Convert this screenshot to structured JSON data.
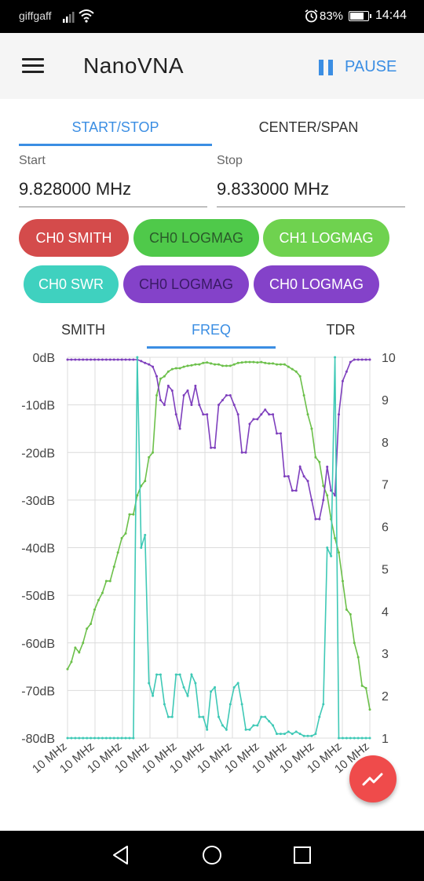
{
  "status_bar": {
    "carrier": "giffgaff",
    "battery": "83%",
    "battery_fraction": 0.83,
    "time": "14:44"
  },
  "app_bar": {
    "title": "NanoVNA",
    "pause_label": "PAUSE"
  },
  "sweep_tabs": [
    {
      "label": "START/STOP",
      "active": true
    },
    {
      "label": "CENTER/SPAN",
      "active": false
    }
  ],
  "fields": {
    "start": {
      "label": "Start",
      "value": "9.828000 MHz"
    },
    "stop": {
      "label": "Stop",
      "value": "9.833000 MHz"
    }
  },
  "traces": [
    {
      "label": "CH0 SMITH",
      "bg": "#d44b4b",
      "fg": "#ffffff"
    },
    {
      "label": "CH0 LOGMAG",
      "bg": "#4fc94a",
      "fg": "#2a5a2a"
    },
    {
      "label": "CH1 LOGMAG",
      "bg": "#6fd24f",
      "fg": "#ffffff"
    },
    {
      "label": "CH0 SWR",
      "bg": "#3fd1bf",
      "fg": "#ffffff"
    },
    {
      "label": "CH0 LOGMAG",
      "bg": "#8442c9",
      "fg": "#3a1a66"
    },
    {
      "label": "CH0 LOGMAG",
      "bg": "#8442c9",
      "fg": "#ffffff"
    }
  ],
  "chart_tabs": [
    {
      "label": "SMITH",
      "active": false
    },
    {
      "label": "FREQ",
      "active": true
    },
    {
      "label": "TDR",
      "active": false
    }
  ],
  "chart_data": {
    "type": "line",
    "y_left": {
      "ticks": [
        "0dB",
        "-10dB",
        "-20dB",
        "-30dB",
        "-40dB",
        "-50dB",
        "-60dB",
        "-70dB",
        "-80dB"
      ],
      "range": [
        -80,
        0
      ]
    },
    "y_right": {
      "ticks": [
        "10",
        "9",
        "8",
        "7",
        "6",
        "5",
        "4",
        "3",
        "2",
        "1"
      ],
      "range": [
        1,
        10
      ]
    },
    "x_tick_labels": [
      "10 MHz",
      "10 MHz",
      "10 MHz",
      "10 MHz",
      "10 MHz",
      "10 MHz",
      "10 MHz",
      "10 MHz",
      "10 MHz",
      "10 MHz",
      "10 MHz",
      "10 MHz"
    ],
    "grid": true,
    "series": [
      {
        "color": "#6cc04a",
        "axis": "left",
        "values": [
          -65.5,
          -64,
          -61,
          -62,
          -60,
          -57,
          -56,
          -53,
          -51,
          -49.5,
          -47,
          -47,
          -44,
          -41,
          -38,
          -37,
          -33,
          -33,
          -29,
          -27,
          -26,
          -21,
          -20,
          -8,
          -4.5,
          -4,
          -3,
          -2.5,
          -2.3,
          -2.3,
          -2,
          -1.8,
          -1.7,
          -1.5,
          -1.5,
          -1.2,
          -1.1,
          -1.3,
          -1.5,
          -1.5,
          -1.8,
          -1.8,
          -1.8,
          -1.5,
          -1.2,
          -1.1,
          -1,
          -1,
          -1,
          -1.1,
          -1,
          -1.2,
          -1.3,
          -1.3,
          -1.5,
          -1.5,
          -1.5,
          -2,
          -2.5,
          -3,
          -4,
          -8,
          -12,
          -15,
          -21,
          -22,
          -27,
          -29,
          -34,
          -38,
          -41,
          -47,
          -53,
          -54,
          -60,
          -63,
          -69,
          -69.5,
          -74
        ]
      },
      {
        "color": "#7e3fbd",
        "axis": "left",
        "values": [
          -0.5,
          -0.5,
          -0.5,
          -0.5,
          -0.5,
          -0.5,
          -0.5,
          -0.5,
          -0.5,
          -0.5,
          -0.5,
          -0.5,
          -0.5,
          -0.5,
          -0.5,
          -0.5,
          -0.5,
          -0.5,
          -0.5,
          -0.8,
          -1.2,
          -1.5,
          -2,
          -4,
          -9,
          -10,
          -6,
          -7,
          -12,
          -15,
          -8,
          -7,
          -10,
          -6,
          -10,
          -12,
          -12,
          -19,
          -19,
          -10,
          -9,
          -8,
          -8,
          -10,
          -12,
          -20,
          -20,
          -14,
          -13,
          -13,
          -12,
          -11,
          -12,
          -12,
          -16,
          -16,
          -25,
          -25,
          -28,
          -28,
          -23,
          -25,
          -26,
          -30,
          -34,
          -34,
          -30,
          -23,
          -28,
          -29,
          -12,
          -5,
          -3,
          -1,
          -0.5,
          -0.5,
          -0.5,
          -0.5,
          -0.5
        ]
      },
      {
        "color": "#3fc9b6",
        "axis": "right",
        "values": [
          1,
          1,
          1,
          1,
          1,
          1,
          1,
          1,
          1,
          1,
          1,
          1,
          1,
          1,
          1,
          1,
          1,
          1,
          10,
          5.5,
          5.8,
          2.3,
          2,
          2.5,
          2.5,
          1.8,
          1.5,
          1.5,
          2.5,
          2.5,
          2.2,
          2,
          2.5,
          2.3,
          1.5,
          1.5,
          1.2,
          2.1,
          2.2,
          1.5,
          1.3,
          1.2,
          1.8,
          2.2,
          2.3,
          1.8,
          1.2,
          1.2,
          1.3,
          1.3,
          1.5,
          1.5,
          1.4,
          1.3,
          1.1,
          1.1,
          1.1,
          1.15,
          1.1,
          1.15,
          1.1,
          1.05,
          1.05,
          1.05,
          1.1,
          1.5,
          1.8,
          5.5,
          5.3,
          10,
          1,
          1,
          1,
          1,
          1,
          1,
          1,
          1,
          1
        ]
      }
    ]
  },
  "nav_bar": {
    "buttons": [
      "back",
      "home",
      "recents"
    ]
  }
}
